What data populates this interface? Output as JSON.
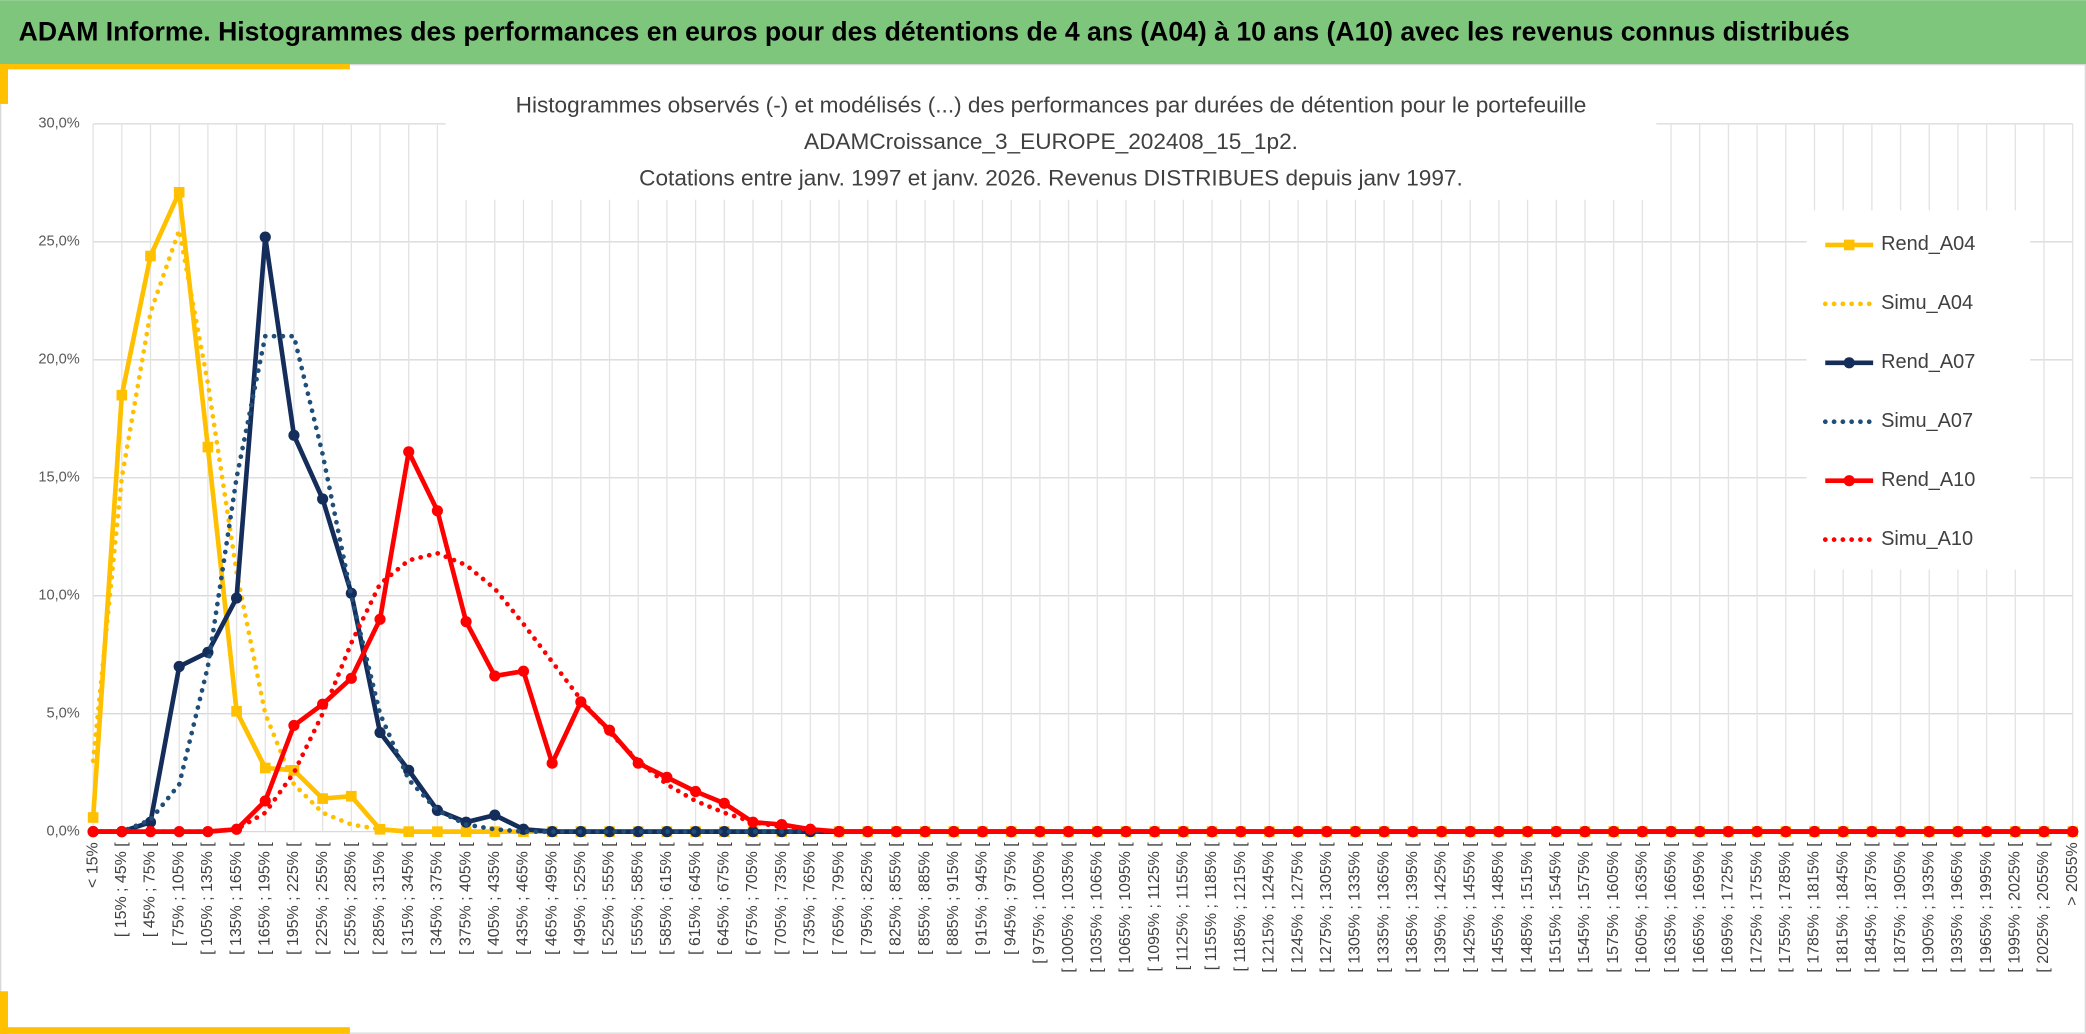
{
  "header": {
    "title": "ADAM Informe. Histogrammes des performances en euros pour des détentions de 4 ans (A04) à 10 ans (A10) avec les revenus connus distribués"
  },
  "chart_data": {
    "type": "line",
    "title": [
      "Histogrammes observés (-) et modélisés (...) des performances par durées de détention pour le portefeuille",
      "ADAMCroissance_3_EUROPE_202408_15_1p2.",
      "Cotations entre janv. 1997 et janv. 2026. Revenus DISTRIBUES depuis janv 1997."
    ],
    "categories": [
      "< 15%",
      "[ 15% ; 45% [",
      "[ 45% ; 75% [",
      "[ 75% ; 105% [",
      "[ 105% ; 135% [",
      "[ 135% ; 165% [",
      "[ 165% ; 195% [",
      "[ 195% ; 225% [",
      "[ 225% ; 255% [",
      "[ 255% ; 285% [",
      "[ 285% ; 315% [",
      "[ 315% ; 345% [",
      "[ 345% ; 375% [",
      "[ 375% ; 405% [",
      "[ 405% ; 435% [",
      "[ 435% ; 465% [",
      "[ 465% ; 495% [",
      "[ 495% ; 525% [",
      "[ 525% ; 555% [",
      "[ 555% ; 585% [",
      "[ 585% ; 615% [",
      "[ 615% ; 645% [",
      "[ 645% ; 675% [",
      "[ 675% ; 705% [",
      "[ 705% ; 735% [",
      "[ 735% ; 765% [",
      "[ 765% ; 795% [",
      "[ 795% ; 825% [",
      "[ 825% ; 855% [",
      "[ 855% ; 885% [",
      "[ 885% ; 915% [",
      "[ 915% ; 945% [",
      "[ 945% ; 975% [",
      "[ 975% ; 1005% [",
      "[ 1005% ; 1035% [",
      "[ 1035% ; 1065% [",
      "[ 1065% ; 1095% [",
      "[ 1095% ; 1125% [",
      "[ 1125% ; 1155% [",
      "[ 1155% ; 1185% [",
      "[ 1185% ; 1215% [",
      "[ 1215% ; 1245% [",
      "[ 1245% ; 1275% [",
      "[ 1275% ; 1305% [",
      "[ 1305% ; 1335% [",
      "[ 1335% ; 1365% [",
      "[ 1365% ; 1395% [",
      "[ 1395% ; 1425% [",
      "[ 1425% ; 1455% [",
      "[ 1455% ; 1485% [",
      "[ 1485% ; 1515% [",
      "[ 1515% ; 1545% [",
      "[ 1545% ; 1575% [",
      "[ 1575% ; 1605% [",
      "[ 1605% ; 1635% [",
      "[ 1635% ; 1665% [",
      "[ 1665% ; 1695% [",
      "[ 1695% ; 1725% [",
      "[ 1725% ; 1755% [",
      "[ 1755% ; 1785% [",
      "[ 1785% ; 1815% [",
      "[ 1815% ; 1845% [",
      "[ 1845% ; 1875% [",
      "[ 1875% ; 1905% [",
      "[ 1905% ; 1935% [",
      "[ 1935% ; 1965% [",
      "[ 1965% ; 1995% [",
      "[ 1995% ; 2025% [",
      "[ 2025% ; 2055% [",
      "> 2055%"
    ],
    "series": [
      {
        "name": "Rend_A04",
        "color": "#ffc000",
        "style": "solid",
        "marker": "square",
        "values": [
          0.6,
          18.5,
          24.4,
          27.1,
          16.3,
          5.1,
          2.7,
          2.6,
          1.4,
          1.5,
          0.1,
          0,
          0,
          0,
          0,
          0,
          0,
          0,
          0,
          0,
          0,
          0,
          0,
          0,
          0,
          0,
          0,
          0,
          0,
          0,
          0,
          0,
          0,
          0,
          0,
          0,
          0,
          0,
          0,
          0,
          0,
          0,
          0,
          0,
          0,
          0,
          0,
          0,
          0,
          0,
          0,
          0,
          0,
          0,
          0,
          0,
          0,
          0,
          0,
          0,
          0,
          0,
          0,
          0,
          0,
          0,
          0,
          0,
          0,
          0
        ]
      },
      {
        "name": "Simu_A04",
        "color": "#ffc000",
        "style": "dotted",
        "values": [
          3,
          15,
          22,
          25.5,
          19,
          11,
          5,
          2,
          0.8,
          0.3,
          0.1,
          0,
          0,
          0,
          0,
          0,
          0,
          0,
          0,
          0,
          0,
          0,
          0,
          0,
          0,
          0,
          0,
          0,
          0,
          0,
          0,
          0,
          0,
          0,
          0,
          0,
          0,
          0,
          0,
          0,
          0,
          0,
          0,
          0,
          0,
          0,
          0,
          0,
          0,
          0,
          0,
          0,
          0,
          0,
          0,
          0,
          0,
          0,
          0,
          0,
          0,
          0,
          0,
          0,
          0,
          0,
          0,
          0,
          0,
          0
        ]
      },
      {
        "name": "Rend_A07",
        "color": "#142d5a",
        "style": "solid",
        "marker": "circle",
        "values": [
          0,
          0,
          0.4,
          7.0,
          7.6,
          9.9,
          25.2,
          16.8,
          14.1,
          10.1,
          4.2,
          2.6,
          0.9,
          0.4,
          0.7,
          0.1,
          0,
          0,
          0,
          0,
          0,
          0,
          0,
          0,
          0,
          0,
          0,
          0,
          0,
          0,
          0,
          0,
          0,
          0,
          0,
          0,
          0,
          0,
          0,
          0,
          0,
          0,
          0,
          0,
          0,
          0,
          0,
          0,
          0,
          0,
          0,
          0,
          0,
          0,
          0,
          0,
          0,
          0,
          0,
          0,
          0,
          0,
          0,
          0,
          0,
          0,
          0,
          0,
          0,
          0
        ]
      },
      {
        "name": "Simu_A07",
        "color": "#1f4e79",
        "style": "dotted",
        "values": [
          0,
          0,
          0.5,
          2,
          7,
          15,
          21,
          21,
          16,
          10,
          5,
          2.2,
          0.9,
          0.3,
          0.1,
          0,
          0,
          0,
          0,
          0,
          0,
          0,
          0,
          0,
          0,
          0,
          0,
          0,
          0,
          0,
          0,
          0,
          0,
          0,
          0,
          0,
          0,
          0,
          0,
          0,
          0,
          0,
          0,
          0,
          0,
          0,
          0,
          0,
          0,
          0,
          0,
          0,
          0,
          0,
          0,
          0,
          0,
          0,
          0,
          0,
          0,
          0,
          0,
          0,
          0,
          0,
          0,
          0,
          0,
          0
        ]
      },
      {
        "name": "Rend_A10",
        "color": "#ff0000",
        "style": "solid",
        "marker": "circle",
        "values": [
          0,
          0,
          0,
          0,
          0,
          0.1,
          1.3,
          4.5,
          5.4,
          6.5,
          9.0,
          16.1,
          13.6,
          8.9,
          6.6,
          6.8,
          2.9,
          5.5,
          4.3,
          2.9,
          2.3,
          1.7,
          1.2,
          0.4,
          0.3,
          0.1,
          0,
          0,
          0,
          0,
          0,
          0,
          0,
          0,
          0,
          0,
          0,
          0,
          0,
          0,
          0,
          0,
          0,
          0,
          0,
          0,
          0,
          0,
          0,
          0,
          0,
          0,
          0,
          0,
          0,
          0,
          0,
          0,
          0,
          0,
          0,
          0,
          0,
          0,
          0,
          0,
          0,
          0,
          0,
          0
        ]
      },
      {
        "name": "Simu_A10",
        "color": "#ff0000",
        "style": "dotted",
        "values": [
          0,
          0,
          0,
          0,
          0,
          0.1,
          0.8,
          2.5,
          5,
          8,
          10.5,
          11.5,
          11.8,
          11.3,
          10.3,
          8.8,
          7.2,
          5.6,
          4.2,
          3,
          2,
          1.3,
          0.8,
          0.4,
          0.2,
          0.1,
          0,
          0,
          0,
          0,
          0,
          0,
          0,
          0,
          0,
          0,
          0,
          0,
          0,
          0,
          0,
          0,
          0,
          0,
          0,
          0,
          0,
          0,
          0,
          0,
          0,
          0,
          0,
          0,
          0,
          0,
          0,
          0,
          0,
          0,
          0,
          0,
          0,
          0,
          0,
          0,
          0,
          0,
          0,
          0
        ]
      }
    ],
    "ylim": [
      0,
      30
    ],
    "yticks": [
      {
        "value": 0,
        "label": "0,0%"
      },
      {
        "value": 5,
        "label": "5,0%"
      },
      {
        "value": 10,
        "label": "10,0%"
      },
      {
        "value": 15,
        "label": "15,0%"
      },
      {
        "value": 20,
        "label": "20,0%"
      },
      {
        "value": 25,
        "label": "25,0%"
      },
      {
        "value": 30,
        "label": "30,0%"
      }
    ],
    "grid": true,
    "legend": "right"
  }
}
